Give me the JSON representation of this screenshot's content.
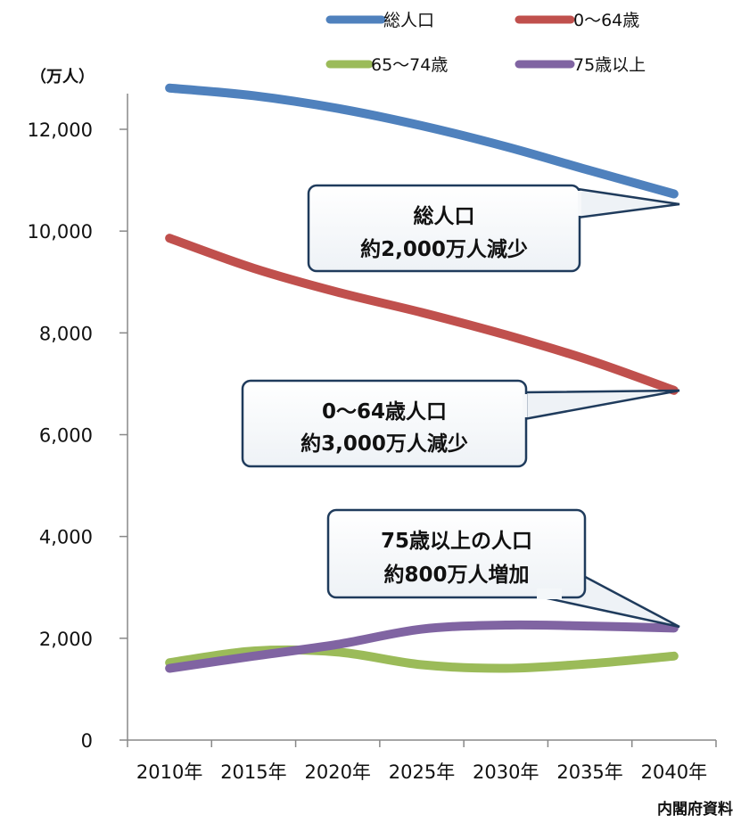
{
  "chart_data": {
    "type": "line",
    "y_unit": "（万人）",
    "x": [
      "2010年",
      "2015年",
      "2020年",
      "2025年",
      "2030年",
      "2035年",
      "2040年"
    ],
    "ylim": [
      0,
      12000
    ],
    "yticks": [
      0,
      2000,
      4000,
      6000,
      8000,
      10000,
      12000
    ],
    "ytick_labels": [
      "0",
      "2,000",
      "4,000",
      "6,000",
      "8,000",
      "10,000",
      "12,000"
    ],
    "grid": false,
    "legend_position": "top",
    "series": [
      {
        "name": "総人口",
        "color": "#4f81bd",
        "values": [
          12810,
          12660,
          12410,
          12070,
          11660,
          11190,
          10730
        ]
      },
      {
        "name": "0〜64歳",
        "color": "#c0504d",
        "values": [
          9860,
          9270,
          8800,
          8400,
          7960,
          7460,
          6870
        ]
      },
      {
        "name": "65〜74歳",
        "color": "#9bbb59",
        "values": [
          1520,
          1750,
          1730,
          1480,
          1410,
          1500,
          1650
        ]
      },
      {
        "name": "75歳以上",
        "color": "#8064a2",
        "values": [
          1410,
          1650,
          1880,
          2180,
          2260,
          2240,
          2200
        ]
      }
    ],
    "annotations": [
      {
        "line1": "総人口",
        "line2": "約2,000万人減少"
      },
      {
        "line1": "0〜64歳人口",
        "line2": "約3,000万人減少"
      },
      {
        "line1": "75歳以上の人口",
        "line2": "約800万人増加"
      }
    ],
    "source": "内閣府資料"
  }
}
